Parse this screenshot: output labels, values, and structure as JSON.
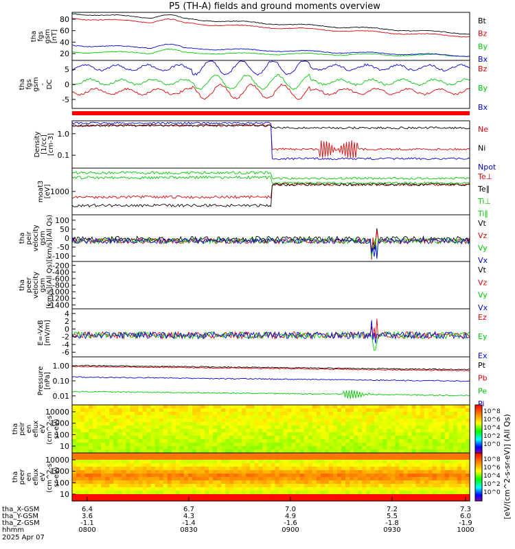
{
  "title": "P5 (TH-A) fields and ground moments overview",
  "colors": {
    "black": "#000000",
    "red": "#e00000",
    "green": "#00c800",
    "blue": "#0000e0"
  },
  "chart_data": [
    {
      "type": "line",
      "ylabel": [
        "tha",
        "fgs",
        "gsm",
        "[nT]"
      ],
      "yticks": [
        "80",
        "60",
        "40",
        "20"
      ],
      "series": [
        {
          "name": "Bt",
          "color": "black",
          "start": 88,
          "end": 55
        },
        {
          "name": "Bz",
          "color": "red",
          "start": 80,
          "end": 50
        },
        {
          "name": "By",
          "color": "green",
          "start": 24,
          "end": 18
        },
        {
          "name": "Bx",
          "color": "blue",
          "start": 35,
          "end": 18
        }
      ]
    },
    {
      "type": "line",
      "ylabel": [
        "tha",
        "fgs",
        "gsm",
        "-",
        "DC"
      ],
      "yticks": [
        "5",
        "0",
        "-5"
      ],
      "series": [
        {
          "name": "Bz",
          "color": "red"
        },
        {
          "name": "By",
          "color": "green"
        },
        {
          "name": "Bx",
          "color": "blue"
        }
      ]
    },
    {
      "type": "line",
      "ylabel": [
        "Density",
        "[1/cc]",
        "[cm-3]"
      ],
      "yticks": [
        "1.0",
        "0.1"
      ],
      "series": [
        {
          "name": "Ne",
          "color": "red"
        },
        {
          "name": "Ni",
          "color": "black"
        },
        {
          "name": "Npot",
          "color": "blue"
        }
      ]
    },
    {
      "type": "line",
      "ylabel": [
        "moat3",
        "[eV]"
      ],
      "yticks": [
        "1000"
      ],
      "series": [
        {
          "name": "Te⊥",
          "color": "red"
        },
        {
          "name": "Te∥",
          "color": "black"
        },
        {
          "name": "Ti⊥",
          "color": "green"
        },
        {
          "name": "Ti∥",
          "color": "green"
        }
      ]
    },
    {
      "type": "line",
      "ylabel": [
        "tha",
        "peir",
        "velocity",
        "gsm",
        "[km/s](All Qs)"
      ],
      "yticks": [
        "100",
        "50",
        "0",
        "-50",
        "-100"
      ],
      "series": [
        {
          "name": "Vt",
          "color": "black"
        },
        {
          "name": "Vz",
          "color": "red"
        },
        {
          "name": "Vy",
          "color": "green"
        },
        {
          "name": "Vx",
          "color": "blue"
        }
      ]
    },
    {
      "type": "line",
      "ylabel": [
        "tha",
        "peer",
        "velocity",
        "gsm",
        "[km/s](All Qs)"
      ],
      "yticks": [
        "-200",
        "-400",
        "-600",
        "-800",
        "-1000",
        "-1200",
        "-1400"
      ],
      "series": [
        {
          "name": "Vt",
          "color": "black"
        },
        {
          "name": "Vz",
          "color": "red"
        },
        {
          "name": "Vy",
          "color": "green"
        },
        {
          "name": "Vx",
          "color": "blue"
        }
      ]
    },
    {
      "type": "line",
      "ylabel": [
        "E=-VxB",
        "[mV/m]"
      ],
      "yticks": [
        "4",
        "2",
        "0",
        "-2",
        "-4",
        "-6"
      ],
      "series": [
        {
          "name": "Ez",
          "color": "red"
        },
        {
          "name": "Ey",
          "color": "green"
        },
        {
          "name": "Ex",
          "color": "blue"
        }
      ]
    },
    {
      "type": "line",
      "ylabel": [
        "Pressure",
        "[nPa]"
      ],
      "yticks": [
        "1.00",
        "0.10",
        "0.01"
      ],
      "series": [
        {
          "name": "Pt",
          "color": "black"
        },
        {
          "name": "Pb",
          "color": "red"
        },
        {
          "name": "Pe",
          "color": "green"
        },
        {
          "name": "Pi",
          "color": "blue"
        }
      ]
    },
    {
      "type": "heatmap",
      "ylabel": [
        "tha",
        "peir",
        "en",
        "eflux",
        "eV",
        "(cm^2-s-",
        "sr-eV)"
      ],
      "yticks": [
        "10000",
        "1000",
        "100",
        "10"
      ],
      "colorbar": [
        "10^8",
        "10^6",
        "10^4",
        "10^2",
        "10^0"
      ]
    },
    {
      "type": "heatmap",
      "ylabel": [
        "tha",
        "peer",
        "en",
        "eflux",
        "eV",
        "(cm^2-s-",
        "sr-eV)"
      ],
      "yticks": [
        "10000",
        "1000",
        "100",
        "10"
      ],
      "colorbar": [
        "10^8",
        "10^6",
        "10^4",
        "10^2",
        "10^0"
      ]
    }
  ],
  "colorbar_label": "[eV/(cm^2-s-sr-eV)] (All Qs)",
  "xaxis": {
    "rows": [
      {
        "label": "tha_X-GSM",
        "values": [
          "6.4",
          "6.7",
          "7.0",
          "7.2",
          "7.3"
        ]
      },
      {
        "label": "tha_Y-GSM",
        "values": [
          "3.6",
          "4.3",
          "4.9",
          "5.5",
          "6.0"
        ]
      },
      {
        "label": "tha_Z-GSM",
        "values": [
          "-1.1",
          "-1.4",
          "-1.6",
          "-1.8",
          "-1.9"
        ]
      },
      {
        "label": "hhmm",
        "values": [
          "0800",
          "0830",
          "0900",
          "0930",
          "1000"
        ]
      }
    ],
    "date": "2025 Apr 07"
  }
}
